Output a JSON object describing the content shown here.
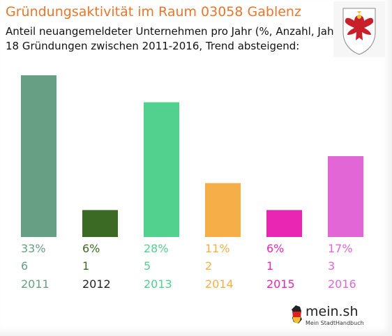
{
  "header": {
    "title": "Gründungsaktivität im Raum 03058 Gablenz",
    "subtitle_line1": "Anteil neuangemeldeter Unternehmen pro Jahr (%, Anzahl, Jahr)",
    "subtitle_line2": "18 Gründungen zwischen 2011-2016, Trend absteigend:"
  },
  "logo": {
    "name": "mein.sh",
    "tagline": "Mein StadtHandbuch",
    "crest_icon": "brandenburg-eagle-crest-icon",
    "map_icon": "germany-flag-map-icon"
  },
  "chart_data": {
    "type": "bar",
    "categories": [
      "2011",
      "2012",
      "2013",
      "2014",
      "2015",
      "2016"
    ],
    "values": [
      6,
      1,
      5,
      2,
      1,
      3
    ],
    "percent_labels": [
      "33%",
      "6%",
      "28%",
      "11%",
      "6%",
      "17%"
    ],
    "count_labels": [
      "6",
      "1",
      "5",
      "2",
      "1",
      "3"
    ],
    "colors": [
      "#679f84",
      "#3a6a23",
      "#52d08e",
      "#f6ae48",
      "#e926b4",
      "#e366d6"
    ],
    "label_colors": [
      "#679f84",
      "#3a6a23",
      "#52d08e",
      "#f6ae48",
      "#e926b4",
      "#e366d6"
    ],
    "year_label_colors": [
      "#679f84",
      "#222222",
      "#52d08e",
      "#f6ae48",
      "#e926b4",
      "#e366d6"
    ],
    "ylim": [
      0,
      6
    ]
  }
}
